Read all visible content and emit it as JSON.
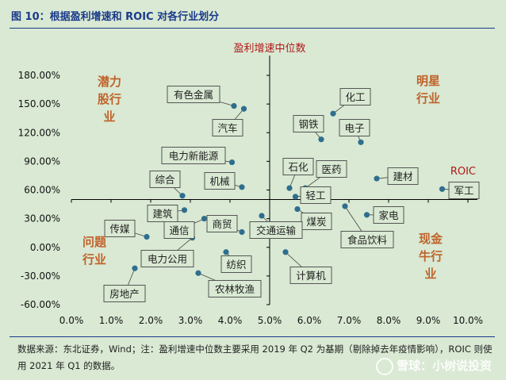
{
  "figure": {
    "title": "图 10：根据盈利增速和 ROIC 对各行业划分",
    "footnote": "数据来源：东北证券，Wind；注：盈利增速中位数主要采用 2019 年 Q2 为基期（剔除掉去年疫情影响），ROIC 则使用 2021 年 Q1 的数据。",
    "watermark": "雪球：小树说投资"
  },
  "colors": {
    "background": "#d9e9d3",
    "point": "#2e6e8e",
    "axis": "#000000",
    "label_border": "#555555",
    "quadrant_text": "#c0622a",
    "axis_label": "#b01818",
    "title": "#1a3a8a"
  },
  "chart_data": {
    "type": "scatter",
    "xlabel": "ROIC",
    "ylabel": "盈利增速中位数",
    "xlim": [
      0,
      10
    ],
    "ylim": [
      -60,
      180
    ],
    "axis_cross": {
      "x": 5.0,
      "y": 50
    },
    "x_ticks": [
      "0.0%",
      "1.0%",
      "2.0%",
      "3.0%",
      "4.0%",
      "5.0%",
      "6.0%",
      "7.0%",
      "8.0%",
      "9.0%",
      "10.0%"
    ],
    "x_tick_values": [
      0,
      1,
      2,
      3,
      4,
      5,
      6,
      7,
      8,
      9,
      10
    ],
    "y_ticks": [
      "180.00%",
      "150.00%",
      "120.00%",
      "90.00%",
      "60.00%",
      "30.00%",
      "0.00%",
      "-30.00%",
      "-60.00%"
    ],
    "y_tick_values": [
      180,
      150,
      120,
      90,
      60,
      30,
      0,
      -30,
      -60
    ],
    "quadrants": [
      {
        "id": "star",
        "lines": [
          "明星",
          "行业"
        ]
      },
      {
        "id": "potential",
        "lines": [
          "潜力",
          "股行",
          "业"
        ]
      },
      {
        "id": "problem",
        "lines": [
          "问题",
          "行业"
        ]
      },
      {
        "id": "cash",
        "lines": [
          "现金",
          "牛行",
          "业"
        ]
      }
    ],
    "points": [
      {
        "label": "有色金属",
        "x": 4.1,
        "y": 148
      },
      {
        "label": "汽车",
        "x": 4.35,
        "y": 145
      },
      {
        "label": "化工",
        "x": 6.6,
        "y": 140
      },
      {
        "label": "钢铁",
        "x": 6.3,
        "y": 113
      },
      {
        "label": "电子",
        "x": 7.3,
        "y": 110
      },
      {
        "label": "电力新能源",
        "x": 4.05,
        "y": 89
      },
      {
        "label": "石化",
        "x": 5.5,
        "y": 62
      },
      {
        "label": "医药",
        "x": 5.9,
        "y": 62
      },
      {
        "label": "建材",
        "x": 7.7,
        "y": 72
      },
      {
        "label": "军工",
        "x": 9.35,
        "y": 61
      },
      {
        "label": "机械",
        "x": 4.3,
        "y": 63
      },
      {
        "label": "综合",
        "x": 2.8,
        "y": 54
      },
      {
        "label": "轻工",
        "x": 5.65,
        "y": 53
      },
      {
        "label": "建筑",
        "x": 2.85,
        "y": 39
      },
      {
        "label": "煤炭",
        "x": 5.7,
        "y": 40
      },
      {
        "label": "家电",
        "x": 7.45,
        "y": 34
      },
      {
        "label": "食品饮料",
        "x": 6.9,
        "y": 43
      },
      {
        "label": "传媒",
        "x": 1.9,
        "y": 11
      },
      {
        "label": "通信",
        "x": 3.35,
        "y": 30
      },
      {
        "label": "商贸",
        "x": 4.3,
        "y": 16
      },
      {
        "label": "交通运输",
        "x": 4.8,
        "y": 33
      },
      {
        "label": "电力公用",
        "x": 3.05,
        "y": 10
      },
      {
        "label": "纺织",
        "x": 3.9,
        "y": -5
      },
      {
        "label": "计算机",
        "x": 5.4,
        "y": -5
      },
      {
        "label": "农林牧渔",
        "x": 3.2,
        "y": -27
      },
      {
        "label": "房地产",
        "x": 1.6,
        "y": -22
      }
    ]
  }
}
